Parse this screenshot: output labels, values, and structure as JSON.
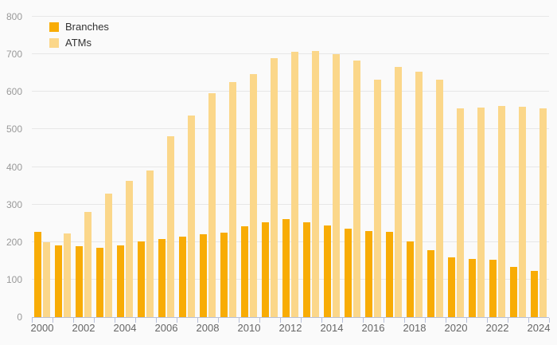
{
  "chart_data": {
    "type": "bar",
    "categories": [
      "2000",
      "2001",
      "2002",
      "2003",
      "2004",
      "2005",
      "2006",
      "2007",
      "2008",
      "2009",
      "2010",
      "2011",
      "2012",
      "2013",
      "2014",
      "2015",
      "2016",
      "2017",
      "2018",
      "2019",
      "2020",
      "2021",
      "2022",
      "2023",
      "2024"
    ],
    "series": [
      {
        "name": "Branches",
        "color": "#F8AC05",
        "values": [
          227,
          192,
          188,
          185,
          191,
          202,
          208,
          215,
          220,
          225,
          241,
          253,
          261,
          253,
          244,
          236,
          229,
          227,
          202,
          179,
          160,
          155,
          152,
          133,
          123
        ]
      },
      {
        "name": "ATMs",
        "color": "#FBD78A",
        "values": [
          200,
          222,
          280,
          330,
          362,
          390,
          482,
          536,
          597,
          625,
          648,
          690,
          707,
          709,
          700,
          684,
          633,
          667,
          653,
          633,
          556,
          559,
          562,
          561,
          556
        ]
      }
    ],
    "xlabel": "",
    "ylabel": "",
    "ylim": [
      0,
      800
    ],
    "ytick_step": 100,
    "x_label_every": 2,
    "grid": "horizontal",
    "legend_position": "top-left",
    "background_color": "#fafafa",
    "gridline_color": "#e7e7e7",
    "axis_color": "#b8c0d8",
    "y_label_color": "#999999",
    "x_label_color": "#666666"
  }
}
